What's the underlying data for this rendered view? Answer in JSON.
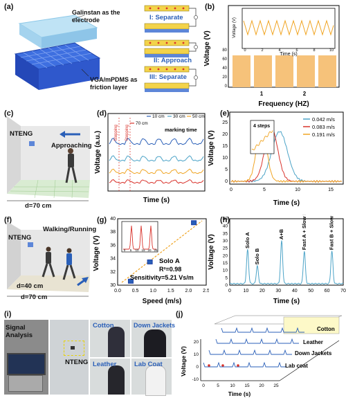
{
  "panel_a": {
    "label": "(a)",
    "electrode_label": "Galinstan as the electrode",
    "friction_label": "VGA/mPDMS as friction layer",
    "stages": [
      "I: Separate",
      "II: Approach",
      "III: Separate"
    ]
  },
  "panel_b": {
    "label": "(b)",
    "chart_data": {
      "type": "bar",
      "categories": [
        "1",
        "2"
      ],
      "xlabel": "Frequency (HZ)",
      "ylabel": "Voltage (V)",
      "ylim": [
        0,
        80
      ],
      "yticks": [
        "0",
        "20",
        "40",
        "60",
        "80"
      ],
      "inset": {
        "type": "line",
        "xlabel": "Time (s)",
        "ylabel": "Voltage (V)",
        "xticks": [
          "0",
          "2",
          "4",
          "6",
          "8",
          "10"
        ],
        "yticks": [
          "0",
          "20",
          "40",
          "60",
          "80"
        ]
      }
    }
  },
  "panel_c": {
    "label": "(c)",
    "device": "NTENG",
    "motion": "Approaching",
    "distance": "d=70 cm"
  },
  "panel_d": {
    "label": "(d)",
    "chart_data": {
      "type": "line",
      "xlabel": "Time (s)",
      "ylabel": "Voltage (a.u.)",
      "legend": [
        "10 cm",
        "30 cm",
        "50 cm",
        "70 cm"
      ],
      "annotation": "marking time",
      "vertical_labels": [
        "Stepping",
        "Stepping"
      ]
    }
  },
  "panel_e": {
    "label": "(e)",
    "chart_data": {
      "type": "line",
      "xlabel": "Time (s)",
      "ylabel": "Voltage (V)",
      "xticks": [
        "0",
        "5",
        "10",
        "15"
      ],
      "yticks": [
        "0",
        "5",
        "10",
        "15",
        "20",
        "25"
      ],
      "legend": [
        "0.042 m/s",
        "0.083 m/s",
        "0.191 m/s"
      ],
      "inset_text": "4 steps"
    }
  },
  "panel_f": {
    "label": "(f)",
    "device": "NTENG",
    "motion": "Walking/Running",
    "distance_1": "d=40 cm",
    "distance_2": "d=70 cm"
  },
  "panel_g": {
    "label": "(g)",
    "chart_data": {
      "type": "scatter",
      "xlabel": "Speed (m/s)",
      "ylabel": "Voltage (V)",
      "xticks": [
        "0.0",
        "0.5",
        "1.0",
        "1.5",
        "2.0",
        "2.5"
      ],
      "yticks": [
        "30",
        "32",
        "34",
        "36",
        "38",
        "40"
      ],
      "x": [
        0.37,
        0.91,
        2.15
      ],
      "y": [
        30.6,
        33.5,
        39.4
      ],
      "title": "Solo A",
      "r2": "R²=0.98",
      "sensitivity": "Sensitivity=5.21 Vs/m",
      "inset_xticks": [
        "0",
        "5",
        "10",
        "15",
        "20",
        "25"
      ]
    }
  },
  "panel_h": {
    "label": "(h)",
    "chart_data": {
      "type": "line",
      "xlabel": "Time (s)",
      "ylabel": "Voltage (V)",
      "xticks": [
        "0",
        "10",
        "20",
        "30",
        "40",
        "50",
        "60",
        "70"
      ],
      "yticks": [
        "0",
        "5",
        "10",
        "15",
        "20",
        "25",
        "30",
        "35",
        "40",
        "45"
      ],
      "peaks": [
        "Solo A",
        "Solo B",
        "A+B",
        "Fast A + Slow B",
        "Fast B + Slow A"
      ]
    }
  },
  "panel_i": {
    "label": "(i)",
    "signal": "Signal Analysis",
    "device": "NTENG",
    "photos": [
      "Cotton",
      "Down Jackets",
      "Leather",
      "Lab Coat"
    ]
  },
  "panel_j": {
    "label": "(j)",
    "chart_data": {
      "type": "line",
      "xlabel": "Time (s)",
      "ylabel": "Voltage (V)",
      "xticks": [
        "0",
        "5",
        "10",
        "15",
        "20",
        "25"
      ],
      "yticks": [
        "-10",
        "0",
        "10",
        "20"
      ],
      "series_labels": [
        "Cotton",
        "Leather",
        "Down Jackets",
        "Lab coat"
      ]
    }
  },
  "colors": {
    "blue": "#2a5fb8",
    "red": "#d9322b",
    "orange": "#f0a422",
    "teal": "#4ba3c7",
    "bar": "#f6c27a"
  }
}
